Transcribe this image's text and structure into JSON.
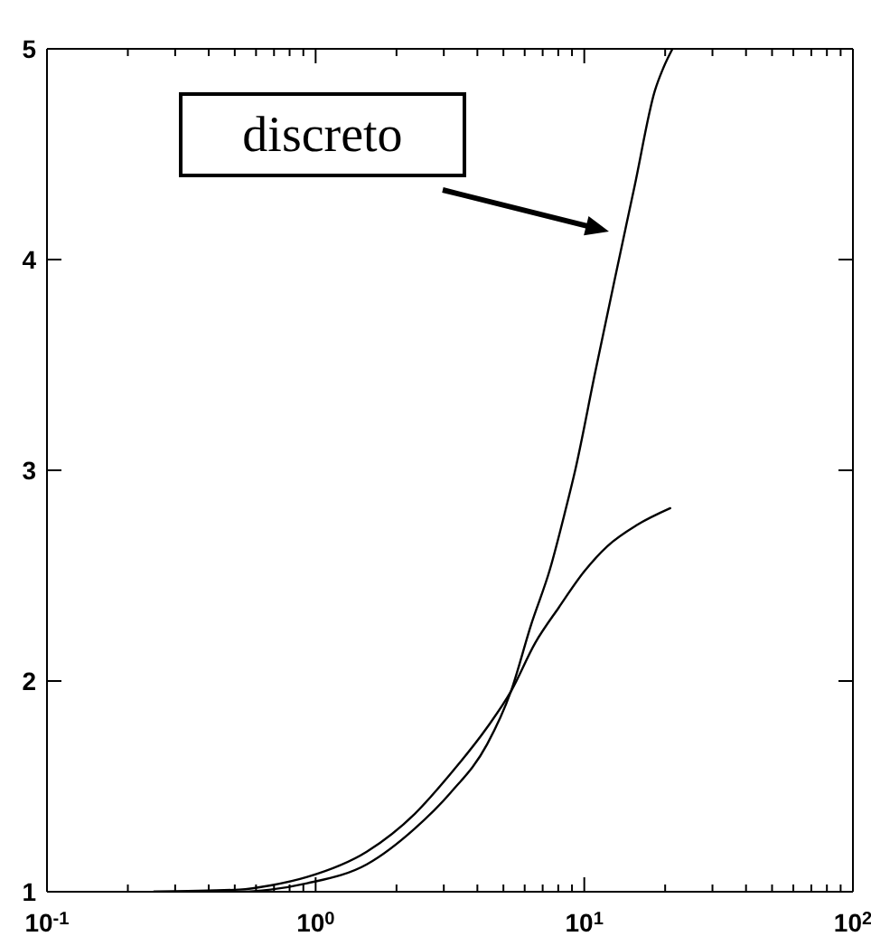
{
  "chart_data": {
    "type": "line",
    "annotations": [
      "discreto"
    ],
    "series": [
      {
        "color": "#000000",
        "x": [
          0.25,
          0.52,
          0.68,
          0.93,
          1.55,
          2.34,
          3.18,
          4.35,
          5.33,
          6.35,
          7.45,
          8.47,
          9.25,
          10.96,
          13.0,
          15.4,
          18.3,
          19.7,
          21.3
        ],
        "values": [
          1.0,
          1.0,
          1.01,
          1.04,
          1.13,
          1.3,
          1.47,
          1.7,
          1.95,
          2.27,
          2.53,
          2.8,
          3.0,
          3.46,
          3.91,
          4.35,
          4.8,
          4.91,
          5.0
        ]
      },
      {
        "color": "#000000",
        "x": [
          0.25,
          0.52,
          0.68,
          0.93,
          1.55,
          2.34,
          3.18,
          4.35,
          5.33,
          6.56,
          8.05,
          10.0,
          12.2,
          15.7,
          20.9
        ],
        "values": [
          1.0,
          1.01,
          1.03,
          1.07,
          1.19,
          1.37,
          1.56,
          1.78,
          1.95,
          2.18,
          2.35,
          2.52,
          2.64,
          2.74,
          2.82
        ]
      }
    ],
    "xlim": [
      0.1,
      100
    ],
    "ylim": [
      1,
      5
    ],
    "xticks": [
      {
        "value": 0.1,
        "label": "10$^{-1}$"
      },
      {
        "value": 0.2,
        "label": null
      },
      {
        "value": 0.3,
        "label": null
      },
      {
        "value": 0.4,
        "label": null
      },
      {
        "value": 0.5,
        "label": null
      },
      {
        "value": 0.6,
        "label": null
      },
      {
        "value": 0.7,
        "label": null
      },
      {
        "value": 0.8,
        "label": null
      },
      {
        "value": 0.9,
        "label": null
      },
      {
        "value": 1,
        "label": "10$^{0}$"
      },
      {
        "value": 2,
        "label": null
      },
      {
        "value": 3,
        "label": null
      },
      {
        "value": 4,
        "label": null
      },
      {
        "value": 5,
        "label": null
      },
      {
        "value": 6,
        "label": null
      },
      {
        "value": 7,
        "label": null
      },
      {
        "value": 8,
        "label": null
      },
      {
        "value": 9,
        "label": null
      },
      {
        "value": 10,
        "label": "10$^{1}$"
      },
      {
        "value": 20,
        "label": null
      },
      {
        "value": 30,
        "label": null
      },
      {
        "value": 40,
        "label": null
      },
      {
        "value": 50,
        "label": null
      },
      {
        "value": 60,
        "label": null
      },
      {
        "value": 70,
        "label": null
      },
      {
        "value": 80,
        "label": null
      },
      {
        "value": 90,
        "label": null
      },
      {
        "value": 100,
        "label": "10$^{2}$"
      }
    ],
    "yticks": [
      1,
      2,
      3,
      4,
      5
    ],
    "log": "x"
  }
}
